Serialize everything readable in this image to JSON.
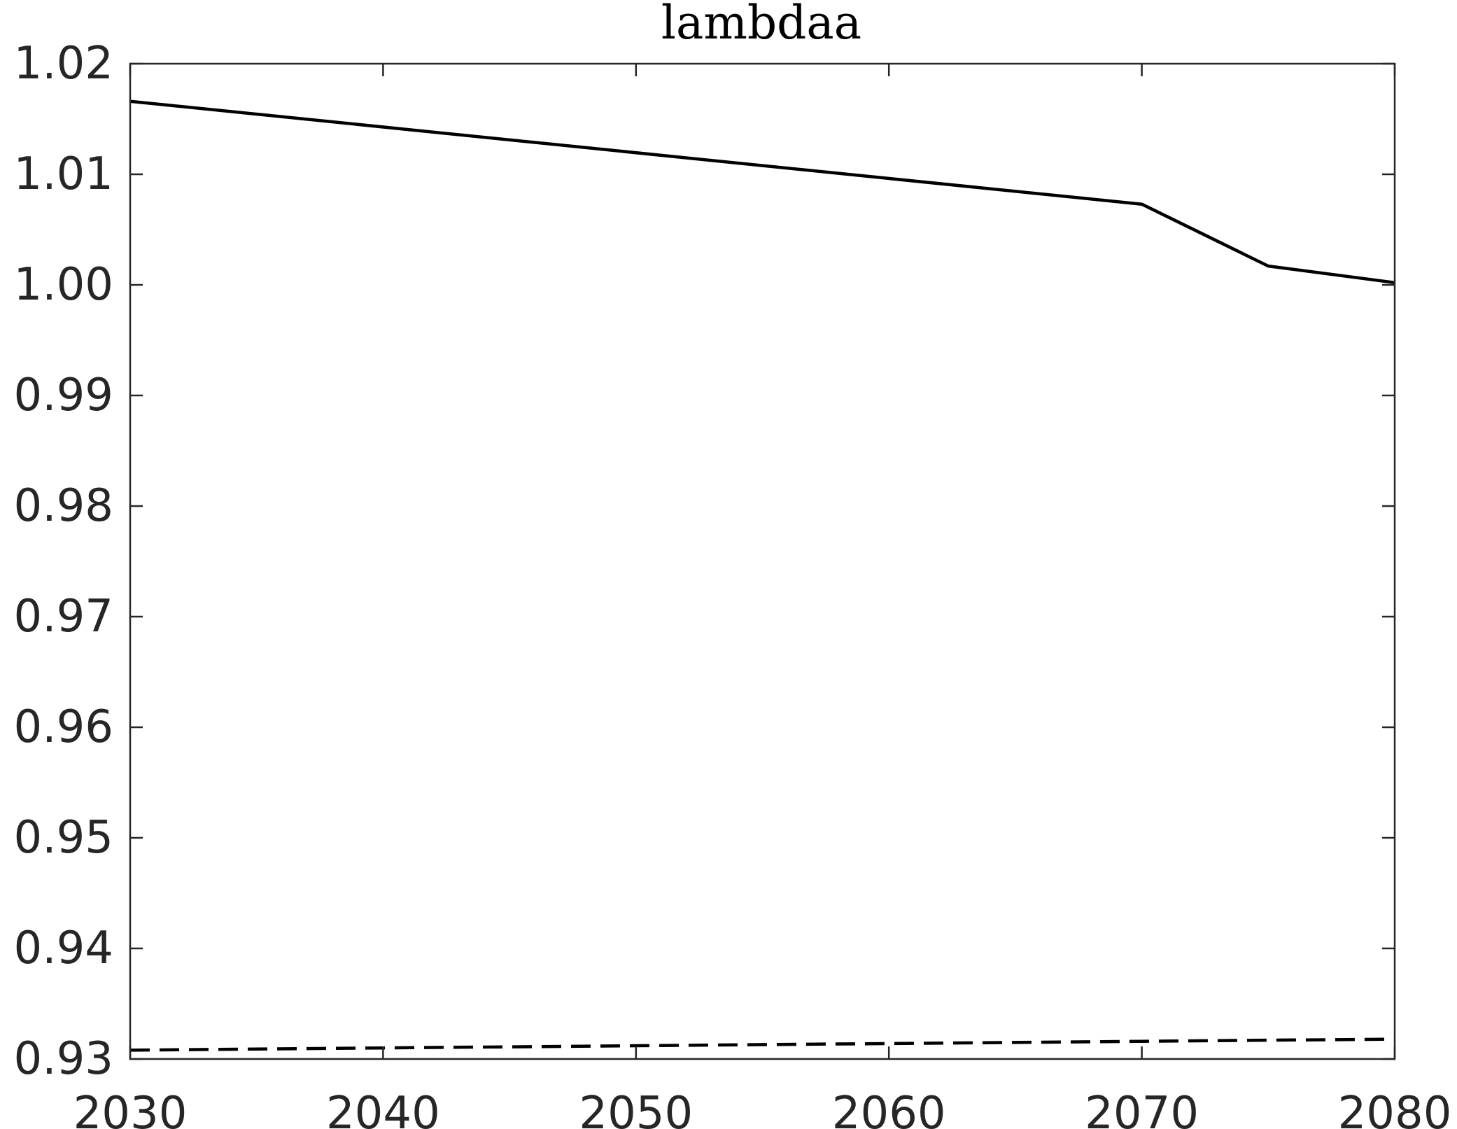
{
  "chart_data": {
    "type": "line",
    "title": "lambdaa",
    "xlabel": "",
    "ylabel": "",
    "xlim": [
      2030,
      2080
    ],
    "ylim": [
      0.93,
      1.02
    ],
    "xticks": [
      2030,
      2040,
      2050,
      2060,
      2070,
      2080
    ],
    "xtick_labels": [
      "2030",
      "2040",
      "2050",
      "2060",
      "2070",
      "2080"
    ],
    "yticks": [
      0.93,
      0.94,
      0.95,
      0.96,
      0.97,
      0.98,
      0.99,
      1.0,
      1.01,
      1.02
    ],
    "ytick_labels": [
      "0.93",
      "0.94",
      "0.95",
      "0.96",
      "0.97",
      "0.98",
      "0.99",
      "1.00",
      "1.01",
      "1.02"
    ],
    "grid": false,
    "series": [
      {
        "style": "solid",
        "color": "#000000",
        "x": [
          2030,
          2070,
          2075,
          2080
        ],
        "y": [
          1.0166,
          1.0073,
          1.0017,
          1.0002
        ]
      },
      {
        "style": "dashed",
        "color": "#000000",
        "x": [
          2030,
          2040,
          2050,
          2060,
          2070,
          2080
        ],
        "y": [
          0.9308,
          0.931,
          0.9312,
          0.9314,
          0.9316,
          0.9318
        ]
      }
    ]
  }
}
